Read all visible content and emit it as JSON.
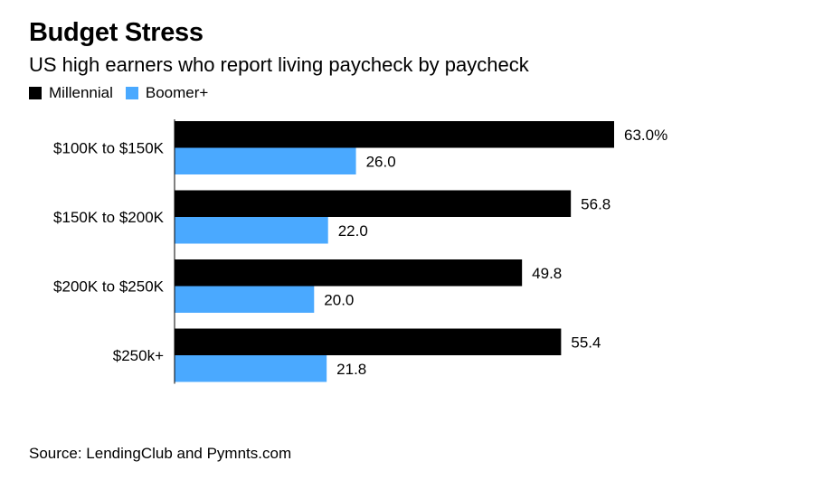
{
  "chart_data": {
    "type": "bar",
    "orientation": "horizontal",
    "title": "Budget Stress",
    "subtitle": "US high earners who report living paycheck by paycheck",
    "categories": [
      "$100K to $150K",
      "$150K to $200K",
      "$200K to $250K",
      "$250k+"
    ],
    "series": [
      {
        "name": "Millennial",
        "color": "#000000",
        "values": [
          63.0,
          56.8,
          49.8,
          55.4
        ],
        "labels": [
          "63.0%",
          "56.8",
          "49.8",
          "55.4"
        ]
      },
      {
        "name": "Boomer+",
        "color": "#4aa9ff",
        "values": [
          26.0,
          22.0,
          20.0,
          21.8
        ],
        "labels": [
          "26.0",
          "22.0",
          "20.0",
          "21.8"
        ]
      }
    ],
    "xlim": [
      0,
      63
    ],
    "grid": false,
    "legend_position": "top-left",
    "source": "Source: LendingClub and Pymnts.com"
  }
}
